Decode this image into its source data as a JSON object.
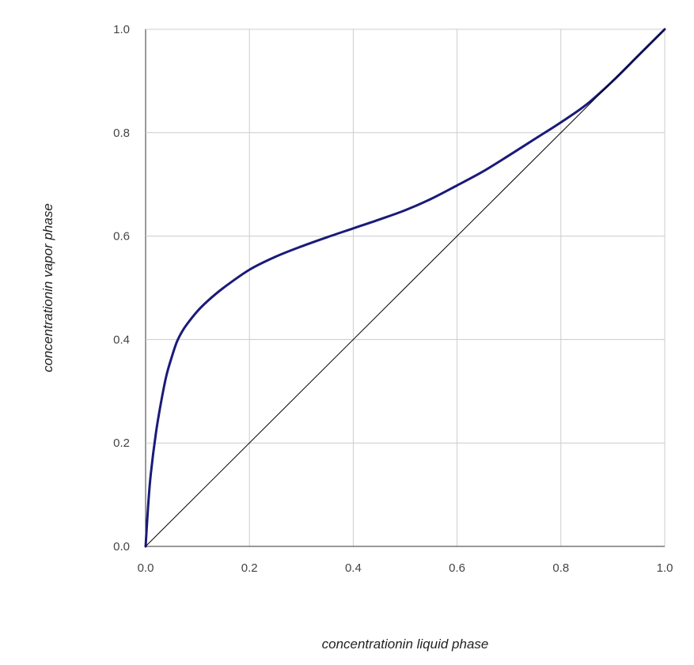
{
  "chart_data": {
    "type": "line",
    "title": "",
    "xlabel": "concentrationin liquid phase",
    "ylabel": "concentrationin vapor phase",
    "xlim": [
      0,
      1
    ],
    "ylim": [
      0,
      1
    ],
    "x_ticks": [
      "0.0",
      "0.2",
      "0.4",
      "0.6",
      "0.8",
      "1.0"
    ],
    "y_ticks": [
      "0.0",
      "0.2",
      "0.4",
      "0.6",
      "0.8",
      "1.0"
    ],
    "grid": true,
    "legend": "none",
    "series": [
      {
        "color": "#1a1a7a",
        "x": [
          0.0,
          0.005,
          0.01,
          0.02,
          0.03,
          0.04,
          0.05,
          0.06,
          0.07,
          0.08,
          0.1,
          0.12,
          0.15,
          0.2,
          0.25,
          0.3,
          0.35,
          0.4,
          0.45,
          0.5,
          0.55,
          0.6,
          0.65,
          0.7,
          0.75,
          0.8,
          0.85,
          0.9,
          0.95,
          1.0
        ],
        "y": [
          0.0,
          0.08,
          0.14,
          0.22,
          0.28,
          0.33,
          0.365,
          0.395,
          0.415,
          0.43,
          0.455,
          0.475,
          0.5,
          0.535,
          0.56,
          0.58,
          0.598,
          0.615,
          0.632,
          0.65,
          0.672,
          0.698,
          0.725,
          0.756,
          0.788,
          0.82,
          0.855,
          0.9,
          0.95,
          1.0
        ]
      },
      {
        "color": "#000000",
        "x": [
          0.0,
          1.0
        ],
        "y": [
          0.0,
          1.0
        ]
      }
    ]
  }
}
